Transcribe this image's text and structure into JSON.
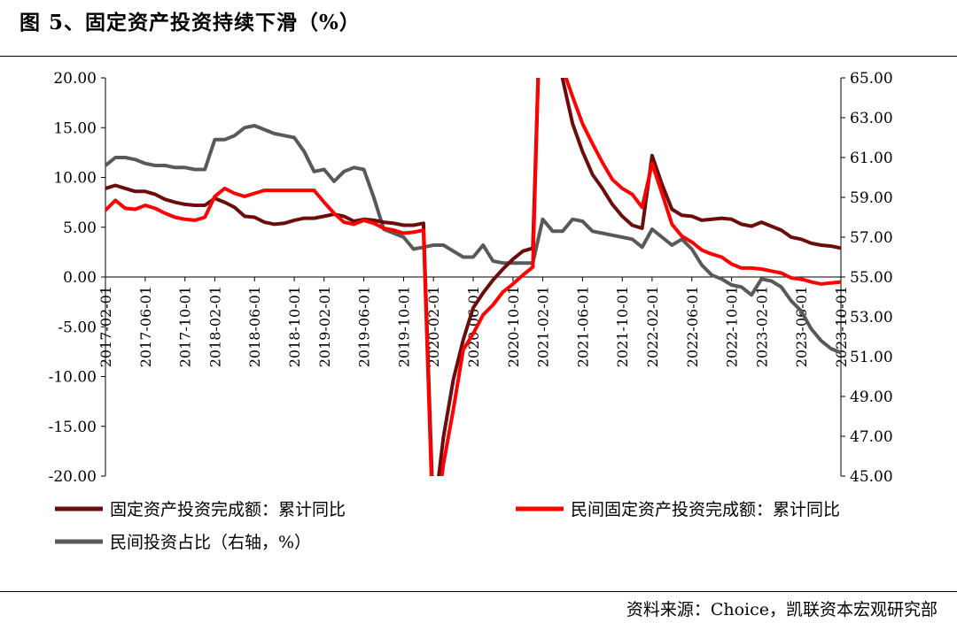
{
  "header": {
    "title": "图 5、固定资产投资持续下滑（%）"
  },
  "footer": {
    "source": "资料来源：Choice，凯联资本宏观研究部"
  },
  "chart_data": {
    "type": "line",
    "title": "图 5、固定资产投资持续下滑（%）",
    "x": [
      "2017-02-01",
      "2017-03-01",
      "2017-04-01",
      "2017-05-01",
      "2017-06-01",
      "2017-07-01",
      "2017-08-01",
      "2017-09-01",
      "2017-10-01",
      "2017-11-01",
      "2017-12-01",
      "2018-02-01",
      "2018-03-01",
      "2018-04-01",
      "2018-05-01",
      "2018-06-01",
      "2018-07-01",
      "2018-08-01",
      "2018-09-01",
      "2018-10-01",
      "2018-11-01",
      "2018-12-01",
      "2019-02-01",
      "2019-03-01",
      "2019-04-01",
      "2019-05-01",
      "2019-06-01",
      "2019-07-01",
      "2019-08-01",
      "2019-09-01",
      "2019-10-01",
      "2019-11-01",
      "2019-12-01",
      "2020-02-01",
      "2020-03-01",
      "2020-04-01",
      "2020-05-01",
      "2020-06-01",
      "2020-07-01",
      "2020-08-01",
      "2020-09-01",
      "2020-10-01",
      "2020-11-01",
      "2020-12-01",
      "2021-02-01",
      "2021-03-01",
      "2021-04-01",
      "2021-05-01",
      "2021-06-01",
      "2021-07-01",
      "2021-08-01",
      "2021-09-01",
      "2021-10-01",
      "2021-11-01",
      "2021-12-01",
      "2022-02-01",
      "2022-03-01",
      "2022-04-01",
      "2022-05-01",
      "2022-06-01",
      "2022-07-01",
      "2022-08-01",
      "2022-09-01",
      "2022-10-01",
      "2022-11-01",
      "2022-12-01",
      "2023-02-01",
      "2023-03-01",
      "2023-04-01",
      "2023-05-01",
      "2023-06-01",
      "2023-07-01",
      "2023-08-01",
      "2023-09-01",
      "2023-10-01"
    ],
    "x_tick_labels": [
      "2017-02-01",
      "2017-06-01",
      "2017-10-01",
      "2018-02-01",
      "2018-06-01",
      "2018-10-01",
      "2019-02-01",
      "2019-06-01",
      "2019-10-01",
      "2020-02-01",
      "2020-06-01",
      "2020-10-01",
      "2021-02-01",
      "2021-06-01",
      "2021-10-01",
      "2022-02-01",
      "2022-06-01",
      "2022-10-01",
      "2023-02-01",
      "2023-06-01",
      "2023-10-01"
    ],
    "ylim": [
      -20,
      20
    ],
    "y_ticks": [
      "20.00",
      "15.00",
      "10.00",
      "5.00",
      "0.00",
      "-5.00",
      "-10.00",
      "-15.00",
      "-20.00"
    ],
    "y2lim": [
      45,
      65
    ],
    "y2_ticks": [
      "65.00",
      "63.00",
      "61.00",
      "59.00",
      "57.00",
      "55.00",
      "53.00",
      "51.00",
      "49.00",
      "47.00",
      "45.00"
    ],
    "legend_position": "bottom",
    "grid": false,
    "series": [
      {
        "name": "固定资产投资完成额：累计同比",
        "axis": "left",
        "color": "#6b0d0d",
        "values": [
          8.9,
          9.2,
          8.9,
          8.6,
          8.6,
          8.3,
          7.8,
          7.5,
          7.3,
          7.2,
          7.2,
          7.9,
          7.5,
          7.0,
          6.1,
          6.0,
          5.5,
          5.3,
          5.4,
          5.7,
          5.9,
          5.9,
          6.1,
          6.3,
          6.1,
          5.6,
          5.8,
          5.7,
          5.5,
          5.4,
          5.2,
          5.2,
          5.4,
          -24.5,
          -16.1,
          -10.3,
          -6.3,
          -3.1,
          -1.6,
          -0.3,
          0.8,
          1.8,
          2.6,
          2.9,
          35.0,
          25.6,
          19.9,
          15.4,
          12.6,
          10.3,
          8.9,
          7.3,
          6.1,
          5.2,
          4.9,
          12.2,
          9.3,
          6.8,
          6.2,
          6.1,
          5.7,
          5.8,
          5.9,
          5.8,
          5.3,
          5.1,
          5.5,
          5.1,
          4.7,
          4.0,
          3.8,
          3.4,
          3.2,
          3.1,
          2.9
        ]
      },
      {
        "name": "民间固定资产投资完成额：累计同比",
        "axis": "left",
        "color": "#ff0000",
        "values": [
          6.7,
          7.7,
          6.9,
          6.8,
          7.2,
          6.9,
          6.4,
          6.0,
          5.8,
          5.7,
          6.0,
          8.1,
          8.9,
          8.4,
          8.1,
          8.4,
          8.7,
          8.7,
          8.7,
          8.7,
          8.7,
          8.7,
          7.5,
          6.4,
          5.5,
          5.3,
          5.7,
          5.4,
          4.9,
          4.7,
          4.4,
          4.5,
          4.7,
          -26.4,
          -18.8,
          -13.3,
          -7.3,
          -5.7,
          -3.8,
          -2.8,
          -1.5,
          -0.7,
          0.2,
          1.0,
          36.4,
          26.0,
          21.0,
          18.1,
          15.4,
          13.4,
          11.5,
          9.8,
          8.9,
          8.3,
          7.0,
          11.4,
          8.4,
          5.3,
          4.1,
          3.5,
          2.7,
          2.3,
          2.0,
          1.3,
          0.9,
          0.9,
          0.8,
          0.6,
          0.4,
          -0.1,
          -0.2,
          -0.5,
          -0.7,
          -0.6,
          -0.5
        ]
      },
      {
        "name": "民间投资占比（右轴，%）",
        "axis": "right",
        "color": "#595959",
        "values": [
          60.6,
          61.0,
          61.0,
          60.9,
          60.7,
          60.6,
          60.6,
          60.5,
          60.5,
          60.4,
          60.4,
          61.9,
          61.9,
          62.1,
          62.5,
          62.6,
          62.4,
          62.2,
          62.1,
          62.0,
          61.3,
          60.3,
          60.4,
          59.8,
          60.3,
          60.5,
          60.4,
          59.0,
          57.4,
          57.2,
          57.0,
          56.4,
          56.5,
          56.6,
          56.6,
          56.3,
          56.0,
          56.0,
          56.6,
          55.8,
          55.7,
          55.7,
          55.7,
          55.7,
          57.9,
          57.3,
          57.3,
          57.9,
          57.8,
          57.3,
          57.2,
          57.1,
          57.0,
          56.9,
          56.5,
          57.4,
          57.0,
          56.6,
          56.9,
          56.4,
          55.6,
          55.1,
          54.9,
          54.6,
          54.5,
          54.1,
          54.9,
          54.8,
          54.5,
          53.8,
          53.3,
          52.4,
          51.8,
          51.4,
          51.2
        ]
      }
    ]
  }
}
